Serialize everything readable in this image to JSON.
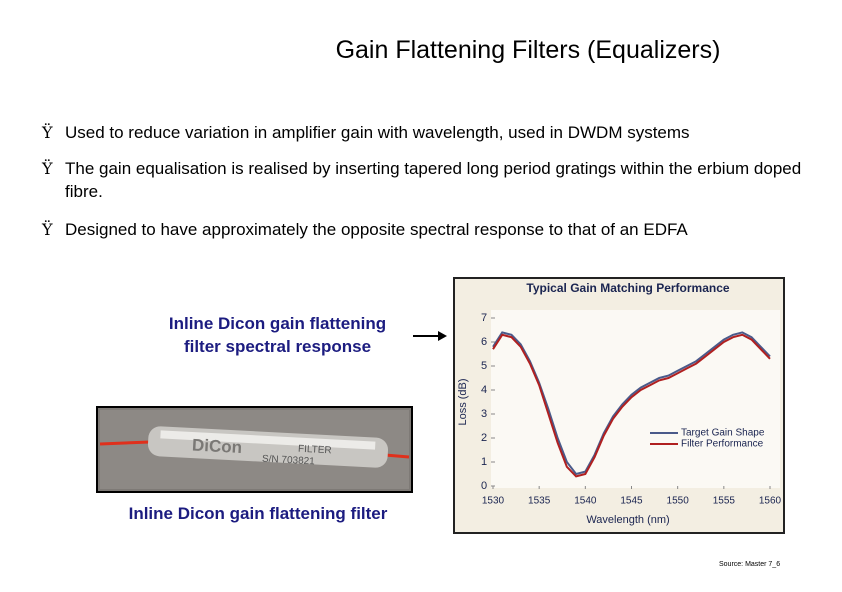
{
  "header": {
    "title": "Gain Flattening Filters (Equalizers)"
  },
  "bullets": [
    {
      "marker": "Ÿ",
      "text": "Used to reduce variation in amplifier gain with wavelength, used in DWDM systems"
    },
    {
      "marker": "Ÿ",
      "text": "The gain equalisation is realised by inserting tapered long period gratings within the erbium doped fibre."
    },
    {
      "marker": "Ÿ",
      "text": "Designed to have approximately the opposite spectral response to that of an EDFA"
    }
  ],
  "captions": {
    "chart": "Inline Dicon gain flattening filter spectral response",
    "photo": "Inline Dicon gain flattening filter"
  },
  "photo": {
    "brand": "DiCon",
    "label": "FILTER",
    "serial": "S/N 703821"
  },
  "source": "Source: Master 7_6",
  "chart_data": {
    "type": "line",
    "title": "Typical Gain Matching Performance",
    "x_label": "Wavelength (nm)",
    "y_label": "Loss (dB)",
    "x": [
      1530,
      1531,
      1532,
      1533,
      1534,
      1535,
      1536,
      1537,
      1538,
      1539,
      1540,
      1541,
      1542,
      1543,
      1544,
      1545,
      1546,
      1547,
      1548,
      1549,
      1550,
      1551,
      1552,
      1553,
      1554,
      1555,
      1556,
      1557,
      1558,
      1559,
      1560
    ],
    "series": [
      {
        "name": "Target Gain Shape",
        "color": "#4a5a8a",
        "values": [
          5.8,
          6.4,
          6.3,
          5.9,
          5.2,
          4.3,
          3.2,
          2.0,
          1.0,
          0.5,
          0.6,
          1.3,
          2.2,
          2.9,
          3.4,
          3.8,
          4.1,
          4.3,
          4.5,
          4.6,
          4.8,
          5.0,
          5.2,
          5.5,
          5.8,
          6.1,
          6.3,
          6.4,
          6.2,
          5.8,
          5.4
        ]
      },
      {
        "name": "Filter Performance",
        "color": "#b02020",
        "values": [
          5.7,
          6.3,
          6.2,
          5.8,
          5.1,
          4.2,
          3.0,
          1.8,
          0.8,
          0.4,
          0.5,
          1.2,
          2.1,
          2.8,
          3.3,
          3.7,
          4.0,
          4.2,
          4.4,
          4.5,
          4.7,
          4.9,
          5.1,
          5.4,
          5.7,
          6.0,
          6.2,
          6.3,
          6.1,
          5.7,
          5.3
        ]
      }
    ],
    "xlim": [
      1530,
      1560
    ],
    "xticks": [
      1530,
      1535,
      1540,
      1545,
      1550,
      1555,
      1560
    ],
    "ylim": [
      0,
      7
    ],
    "yticks": [
      0,
      1,
      2,
      3,
      4,
      5,
      6,
      7
    ],
    "legend": "lower-right"
  }
}
